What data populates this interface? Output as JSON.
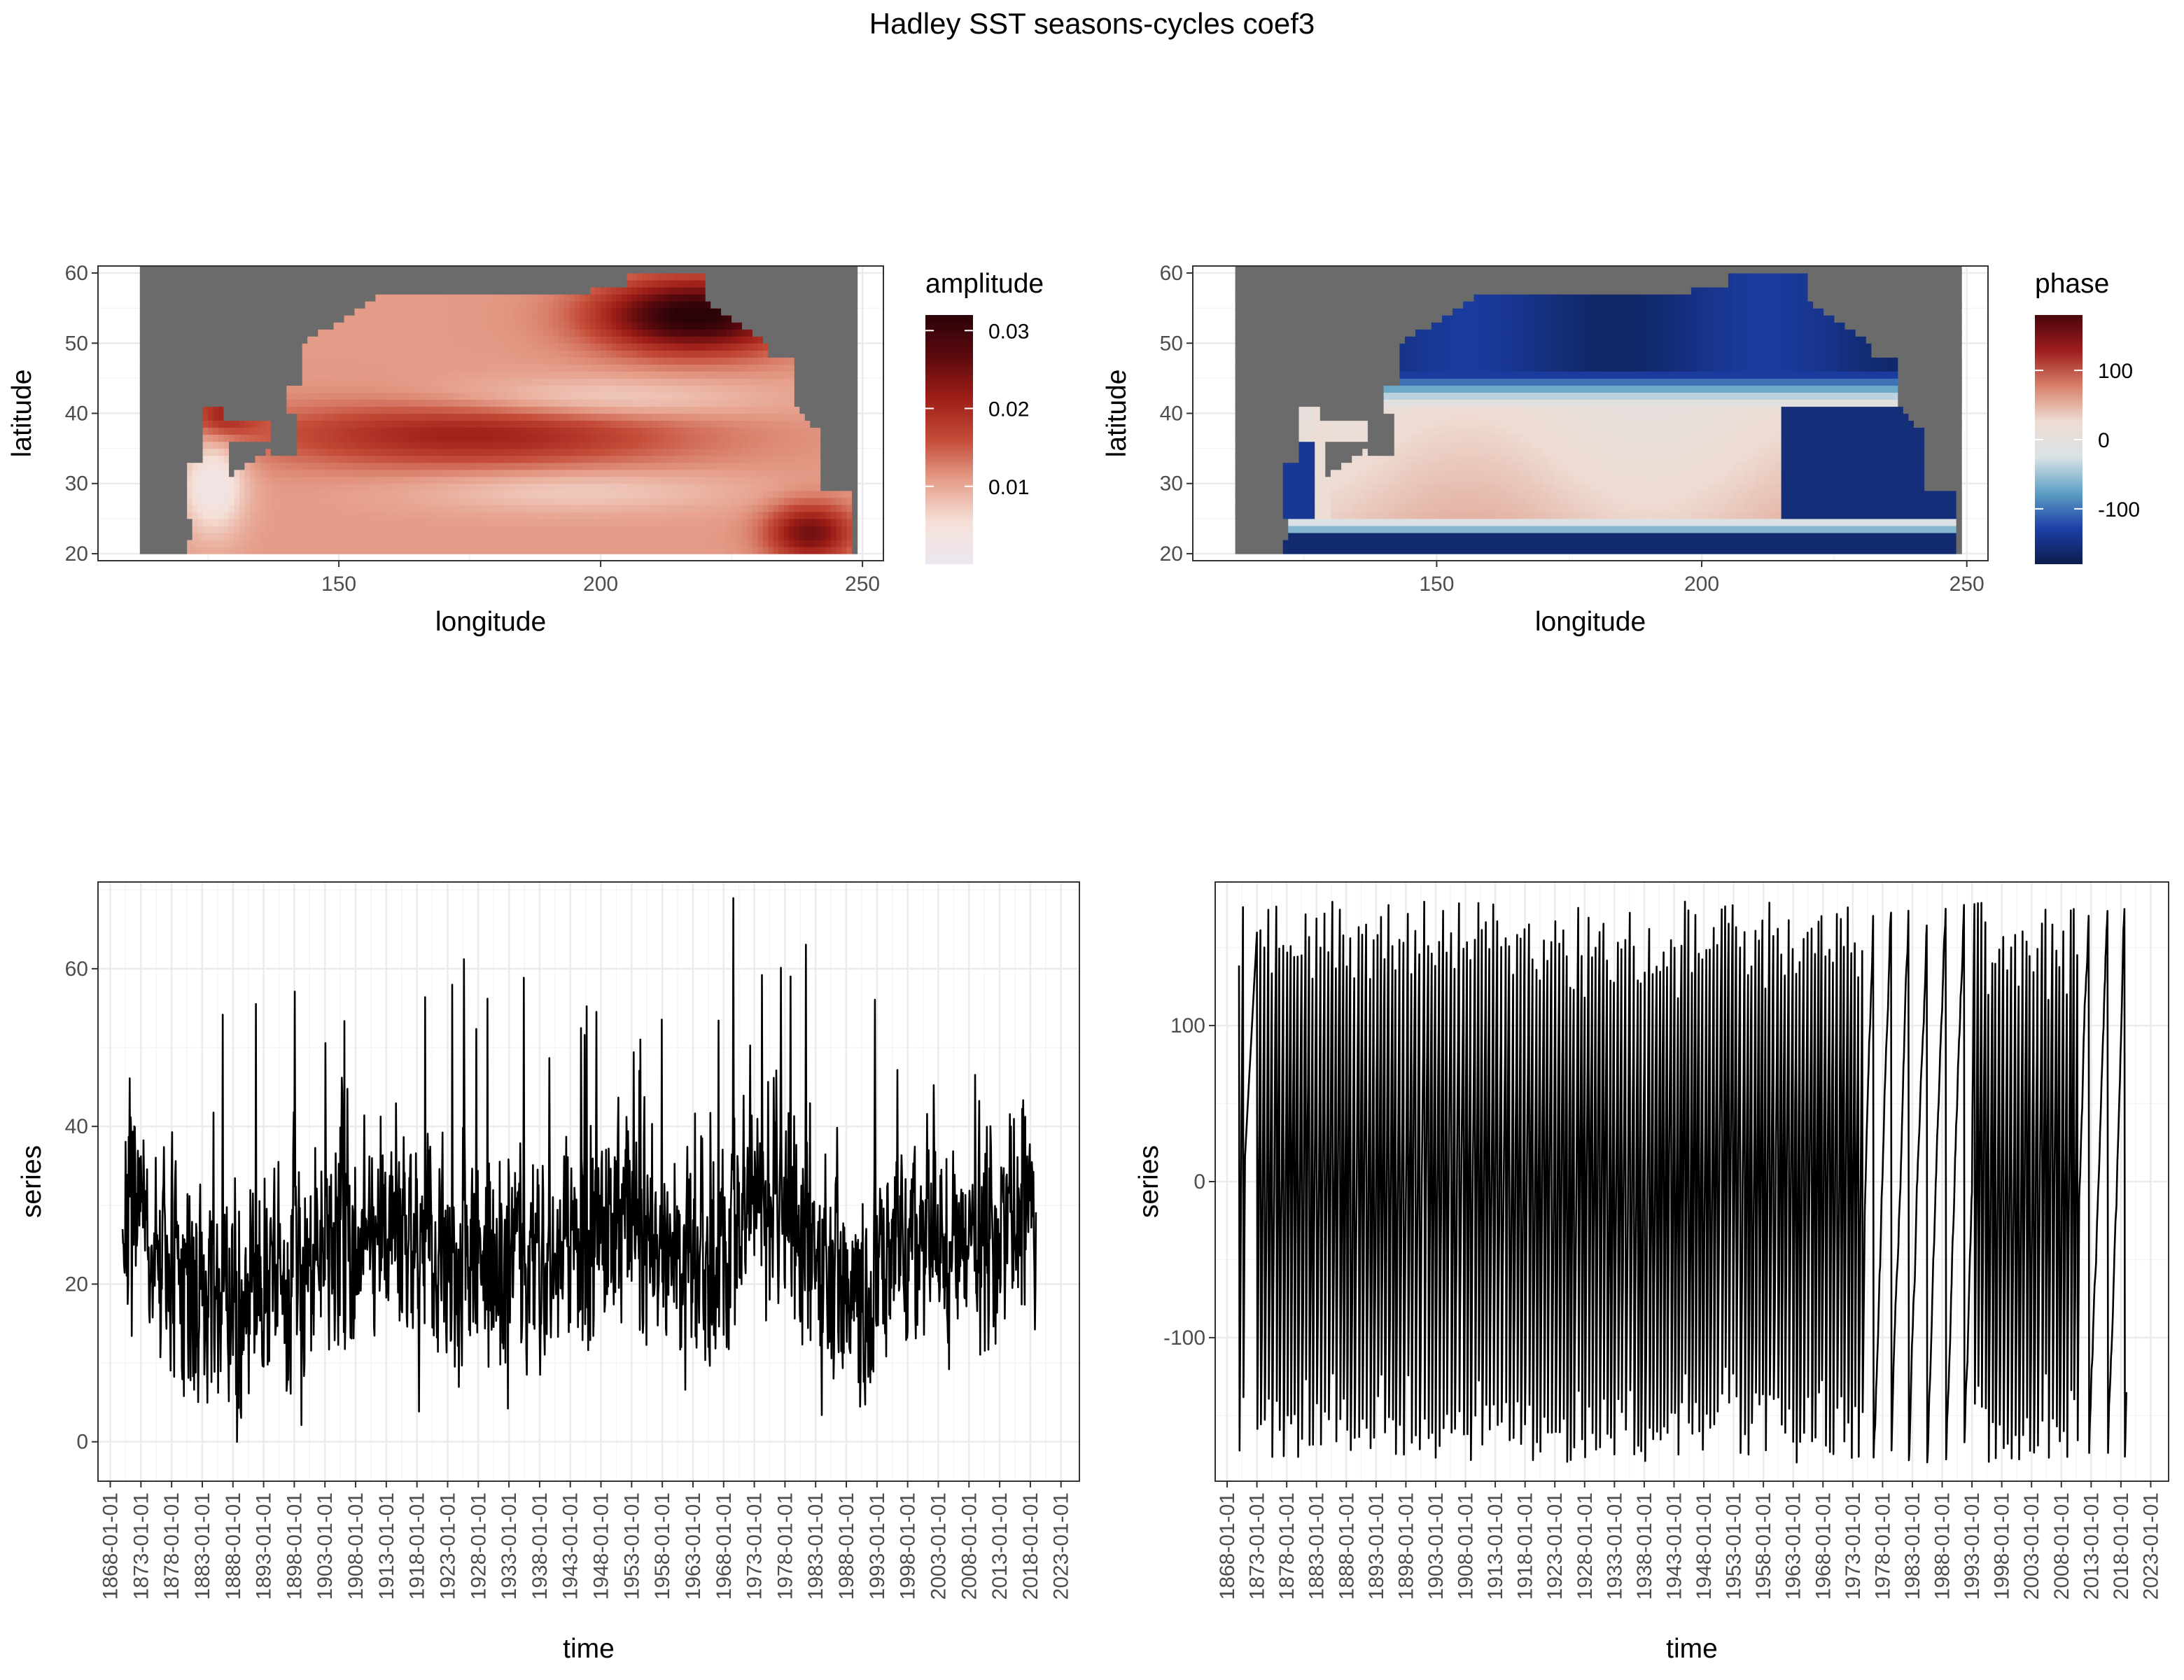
{
  "figure": {
    "suptitle": "Hadley SST seasons-cycles coef3"
  },
  "colors": {
    "land": "#6b6b6b",
    "line": "#000000",
    "grid_major": "#ebebeb",
    "grid_minor": "#f5f5f5",
    "amplitude_scale": [
      "#ece7f2",
      "#f5e0d8",
      "#e6a08c",
      "#c44c38",
      "#9e1d17",
      "#5c0a0e",
      "#2a0208"
    ],
    "phase_scale": [
      "#0b1d4d",
      "#1d3fa8",
      "#5d9fc4",
      "#d9e2e6",
      "#eedcd3",
      "#d8816c",
      "#9e1d1d",
      "#4a050c"
    ]
  },
  "chart_data": [
    {
      "type": "heatmap",
      "panel": "top-left",
      "variable": "amplitude",
      "xlabel": "longitude",
      "ylabel": "latitude",
      "xlim": [
        104,
        254
      ],
      "ylim": [
        19,
        61
      ],
      "x_ticks": [
        150,
        200,
        250
      ],
      "y_ticks": [
        20,
        30,
        40,
        50,
        60
      ],
      "legend": {
        "title": "amplitude",
        "range": [
          0.0,
          0.032
        ],
        "ticks": [
          0.01,
          0.02,
          0.03
        ],
        "tick_labels": [
          "0.01",
          "0.02",
          "0.03"
        ],
        "position": "right"
      },
      "grid": true
    },
    {
      "type": "heatmap",
      "panel": "top-right",
      "variable": "phase",
      "xlabel": "longitude",
      "ylabel": "latitude",
      "xlim": [
        104,
        254
      ],
      "ylim": [
        19,
        61
      ],
      "x_ticks": [
        150,
        200,
        250
      ],
      "y_ticks": [
        20,
        30,
        40,
        50,
        60
      ],
      "legend": {
        "title": "phase",
        "range": [
          -180,
          180
        ],
        "ticks": [
          -100,
          0,
          100
        ],
        "tick_labels": [
          "-100",
          "0",
          "100"
        ],
        "position": "right"
      },
      "grid": true
    },
    {
      "type": "line",
      "panel": "bottom-left",
      "xlabel": "time",
      "ylabel": "series",
      "xlim": [
        "1866-01-01",
        "2026-01-01"
      ],
      "ylim": [
        -5,
        71
      ],
      "y_ticks": [
        0,
        20,
        40,
        60
      ],
      "x_tick_labels": [
        "1868-01-01",
        "1873-01-01",
        "1878-01-01",
        "1883-01-01",
        "1888-01-01",
        "1893-01-01",
        "1898-01-01",
        "1903-01-01",
        "1908-01-01",
        "1913-01-01",
        "1918-01-01",
        "1923-01-01",
        "1928-01-01",
        "1933-01-01",
        "1938-01-01",
        "1943-01-01",
        "1948-01-01",
        "1953-01-01",
        "1958-01-01",
        "1963-01-01",
        "1968-01-01",
        "1973-01-01",
        "1978-01-01",
        "1983-01-01",
        "1988-01-01",
        "1993-01-01",
        "1998-01-01",
        "2003-01-01",
        "2008-01-01",
        "2013-01-01",
        "2018-01-01",
        "2023-01-01"
      ],
      "series": [
        {
          "x_start": "1870-01",
          "x_end": "2018-12",
          "step": "monthly",
          "anchor_years": [
            1870,
            1875,
            1880,
            1885,
            1890,
            1895,
            1900,
            1905,
            1910,
            1915,
            1920,
            1925,
            1930,
            1935,
            1940,
            1945,
            1950,
            1955,
            1960,
            1965,
            1970,
            1975,
            1980,
            1985,
            1990,
            1995,
            2000,
            2005,
            2010,
            2015,
            2019
          ],
          "anchor_means": [
            30,
            24,
            20,
            17,
            18,
            22,
            24,
            25,
            28,
            26,
            24,
            22,
            23,
            25,
            24,
            27,
            30,
            26,
            21,
            23,
            28,
            32,
            25,
            20,
            19,
            24,
            28,
            24,
            25,
            28,
            25
          ],
          "noise_std": 11,
          "min": 0,
          "max": 69
        }
      ],
      "grid": true
    },
    {
      "type": "line",
      "panel": "bottom-right",
      "xlabel": "time",
      "ylabel": "series",
      "xlim": [
        "1866-01-01",
        "2026-01-01"
      ],
      "ylim": [
        -192,
        192
      ],
      "y_ticks": [
        -100,
        0,
        100
      ],
      "x_tick_labels": [
        "1868-01-01",
        "1873-01-01",
        "1878-01-01",
        "1883-01-01",
        "1888-01-01",
        "1893-01-01",
        "1898-01-01",
        "1903-01-01",
        "1908-01-01",
        "1913-01-01",
        "1918-01-01",
        "1923-01-01",
        "1928-01-01",
        "1933-01-01",
        "1938-01-01",
        "1943-01-01",
        "1948-01-01",
        "1953-01-01",
        "1958-01-01",
        "1963-01-01",
        "1968-01-01",
        "1973-01-01",
        "1978-01-01",
        "1983-01-01",
        "1988-01-01",
        "1993-01-01",
        "1998-01-01",
        "2003-01-01",
        "2008-01-01",
        "2013-01-01",
        "2018-01-01",
        "2023-01-01"
      ],
      "series": [
        {
          "x_start": "1870-01",
          "x_end": "2018-12",
          "step": "monthly",
          "description": "phase in degrees, wrapping between -180 and 180",
          "min": -180,
          "max": 180
        }
      ],
      "grid": true
    }
  ]
}
